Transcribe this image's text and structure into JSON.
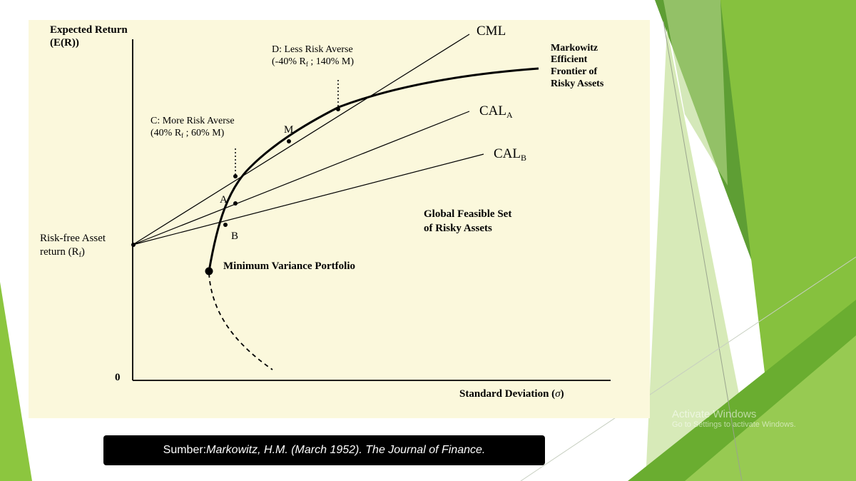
{
  "colors": {
    "chart_bg": "#fbf8dc",
    "green_dark": "#4f9a2b",
    "green_mid": "#7cbd3a",
    "green_light": "#a9d46a",
    "caption_bg": "#000000"
  },
  "diagram": {
    "y_axis_label_line1": "Expected Return",
    "y_axis_label_line2": "(E(R))",
    "x_axis_label": "Standard Deviation (",
    "x_axis_sigma": "σ",
    "x_axis_close": ")",
    "origin_label": "0",
    "rf_label_line1": "Risk-free Asset",
    "rf_label_line2": "return (R",
    "rf_sub": "f",
    "rf_close": ")",
    "cml_label": "CML",
    "cal_a_label": "CAL",
    "cal_a_sub": "A",
    "cal_b_label": "CAL",
    "cal_b_sub": "B",
    "frontier_line1": "Markowitz",
    "frontier_line2": "Efficient",
    "frontier_line3": "Frontier of",
    "frontier_line4": "Risky Assets",
    "feasible_line1": "Global Feasible Set",
    "feasible_line2": "of Risky Assets",
    "mvp_label": "Minimum Variance Portfolio",
    "point_m": "M",
    "point_a": "A",
    "point_b": "B",
    "c_label_line1": "C: More Risk Averse",
    "c_label_line2a": "(40% R",
    "c_label_sub": "f",
    "c_label_line2b": " ; 60% M)",
    "d_label_line1": "D: Less Risk Averse",
    "d_label_line2a": "(-40% R",
    "d_label_sub": "f",
    "d_label_line2b": " ; 140% M)"
  },
  "caption": {
    "prefix": "Sumber: ",
    "citation": "Markowitz, H.M. (March 1952). The Journal of Finance."
  },
  "watermark": {
    "line1": "Activate Windows",
    "line2": "Go to Settings to activate Windows."
  }
}
